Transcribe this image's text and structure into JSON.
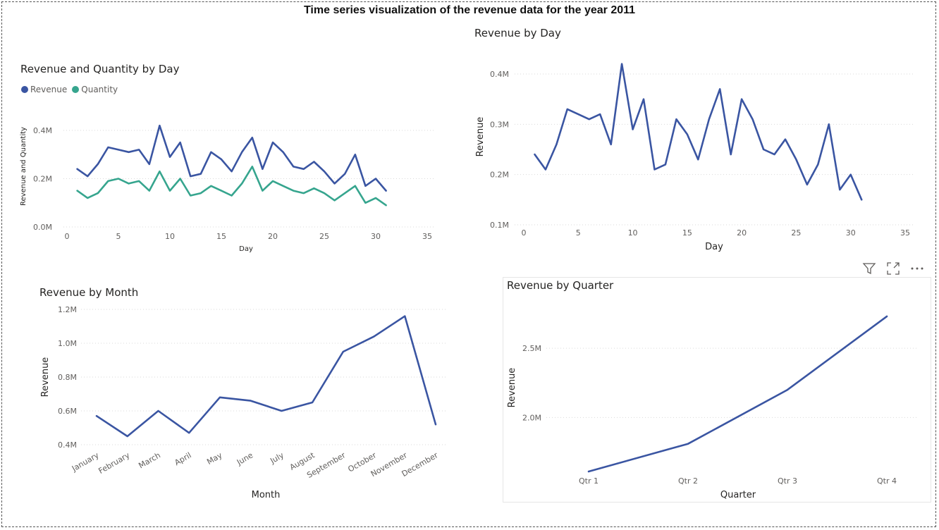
{
  "page": {
    "title": "Time series visualization of the revenue data for the year 2011"
  },
  "header_icons": [
    "filter-icon",
    "focus-mode-icon",
    "more-options-icon"
  ],
  "colors": {
    "revenue": "#3a55a2",
    "quantity": "#36a58e"
  },
  "chart_data": [
    {
      "id": "revqty",
      "type": "line",
      "title": "Revenue and Quantity by Day",
      "xlabel": "Day",
      "ylabel": "Revenue and Quantity",
      "xlim": [
        0,
        35
      ],
      "xticks": [
        0,
        5,
        10,
        15,
        20,
        25,
        30,
        35
      ],
      "xtick_labels": [
        "0",
        "5",
        "10",
        "15",
        "20",
        "25",
        "30",
        "35"
      ],
      "ylim": [
        0,
        0.4
      ],
      "yticks": [
        0,
        0.2,
        0.4
      ],
      "ytick_labels": [
        "0.0M",
        "0.2M",
        "0.4M"
      ],
      "legend": "top-left",
      "grid": true,
      "x": [
        1,
        2,
        3,
        4,
        5,
        6,
        7,
        8,
        9,
        10,
        11,
        12,
        13,
        14,
        15,
        16,
        17,
        18,
        19,
        20,
        21,
        22,
        23,
        24,
        25,
        26,
        27,
        28,
        29,
        30,
        31
      ],
      "series": [
        {
          "name": "Revenue",
          "color": "#3a55a2",
          "values": [
            0.24,
            0.21,
            0.26,
            0.33,
            0.32,
            0.31,
            0.32,
            0.26,
            0.42,
            0.29,
            0.35,
            0.21,
            0.22,
            0.31,
            0.28,
            0.23,
            0.31,
            0.37,
            0.24,
            0.35,
            0.31,
            0.25,
            0.24,
            0.27,
            0.23,
            0.18,
            0.22,
            0.3,
            0.17,
            0.2,
            0.15
          ]
        },
        {
          "name": "Quantity",
          "color": "#36a58e",
          "values": [
            0.15,
            0.12,
            0.14,
            0.19,
            0.2,
            0.18,
            0.19,
            0.15,
            0.23,
            0.15,
            0.2,
            0.13,
            0.14,
            0.17,
            0.15,
            0.13,
            0.18,
            0.25,
            0.15,
            0.19,
            0.17,
            0.15,
            0.14,
            0.16,
            0.14,
            0.11,
            0.14,
            0.17,
            0.1,
            0.12,
            0.09
          ]
        }
      ]
    },
    {
      "id": "day",
      "type": "line",
      "title": "Revenue by Day",
      "xlabel": "Day",
      "ylabel": "Revenue",
      "xlim": [
        0,
        35
      ],
      "xticks": [
        0,
        5,
        10,
        15,
        20,
        25,
        30,
        35
      ],
      "xtick_labels": [
        "0",
        "5",
        "10",
        "15",
        "20",
        "25",
        "30",
        "35"
      ],
      "ylim": [
        0.1,
        0.4
      ],
      "yticks": [
        0.1,
        0.2,
        0.3,
        0.4
      ],
      "ytick_labels": [
        "0.1M",
        "0.2M",
        "0.3M",
        "0.4M"
      ],
      "grid": true,
      "x": [
        1,
        2,
        3,
        4,
        5,
        6,
        7,
        8,
        9,
        10,
        11,
        12,
        13,
        14,
        15,
        16,
        17,
        18,
        19,
        20,
        21,
        22,
        23,
        24,
        25,
        26,
        27,
        28,
        29,
        30,
        31
      ],
      "series": [
        {
          "name": "Revenue",
          "color": "#3a55a2",
          "values": [
            0.24,
            0.21,
            0.26,
            0.33,
            0.32,
            0.31,
            0.32,
            0.26,
            0.42,
            0.29,
            0.35,
            0.21,
            0.22,
            0.31,
            0.28,
            0.23,
            0.31,
            0.37,
            0.24,
            0.35,
            0.31,
            0.25,
            0.24,
            0.27,
            0.23,
            0.18,
            0.22,
            0.3,
            0.17,
            0.2,
            0.15
          ]
        }
      ]
    },
    {
      "id": "month",
      "type": "line",
      "title": "Revenue by Month",
      "xlabel": "Month",
      "ylabel": "Revenue",
      "categories": [
        "January",
        "February",
        "March",
        "April",
        "May",
        "June",
        "July",
        "August",
        "September",
        "October",
        "November",
        "December"
      ],
      "ylim": [
        0.4,
        1.2
      ],
      "yticks": [
        0.4,
        0.6,
        0.8,
        1.0,
        1.2
      ],
      "ytick_labels": [
        "0.4M",
        "0.6M",
        "0.8M",
        "1.0M",
        "1.2M"
      ],
      "grid": true,
      "series": [
        {
          "name": "Revenue",
          "color": "#3a55a2",
          "values": [
            0.57,
            0.45,
            0.6,
            0.47,
            0.68,
            0.66,
            0.6,
            0.65,
            0.95,
            1.04,
            1.16,
            0.52
          ]
        }
      ]
    },
    {
      "id": "quarter",
      "type": "line",
      "title": "Revenue by Quarter",
      "xlabel": "Quarter",
      "ylabel": "Revenue",
      "categories": [
        "Qtr 1",
        "Qtr 2",
        "Qtr 3",
        "Qtr 4"
      ],
      "ylim": [
        1.62,
        2.75
      ],
      "yticks": [
        2.0,
        2.5
      ],
      "ytick_labels": [
        "2.0M",
        "2.5M"
      ],
      "grid": true,
      "series": [
        {
          "name": "Revenue",
          "color": "#3a55a2",
          "values": [
            1.61,
            1.81,
            2.2,
            2.73
          ]
        }
      ]
    }
  ]
}
